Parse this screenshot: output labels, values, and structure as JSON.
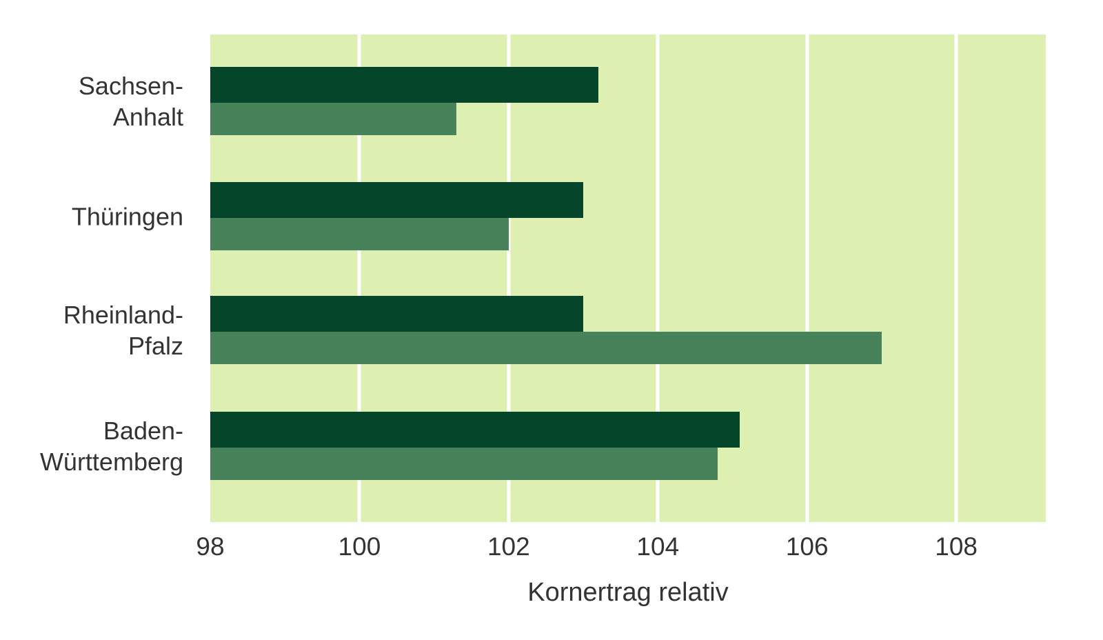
{
  "chart_data": {
    "type": "bar",
    "orientation": "horizontal",
    "title": "",
    "xlabel": "Kornertrag relativ",
    "categories": [
      "Sachsen-Anhalt",
      "Thüringen",
      "Rheinland-Pfalz",
      "Baden-Württemberg"
    ],
    "category_label_lines": [
      [
        "Sachsen-",
        "Anhalt"
      ],
      [
        "Thüringen"
      ],
      [
        "Rheinland-",
        "Pfalz"
      ],
      [
        "Baden-",
        "Württemberg"
      ]
    ],
    "series": [
      {
        "name": "dark-green-bar",
        "color": "#05462B",
        "values": [
          103.2,
          103.0,
          103.0,
          105.1
        ]
      },
      {
        "name": "medium-green-bar",
        "color": "#47825A",
        "values": [
          101.3,
          102.0,
          107.0,
          104.8
        ]
      }
    ],
    "x_ticks": [
      98,
      100,
      102,
      104,
      106,
      108
    ],
    "xlim": [
      98,
      109.2
    ],
    "grid": "vertical-white-lines-at-ticks",
    "legend": "none",
    "plot_bg_color": "#DEF0B1",
    "gridline_color": "#FFFFFF",
    "text_color": "#333333",
    "page_bg_color": "#FFFFFF"
  }
}
